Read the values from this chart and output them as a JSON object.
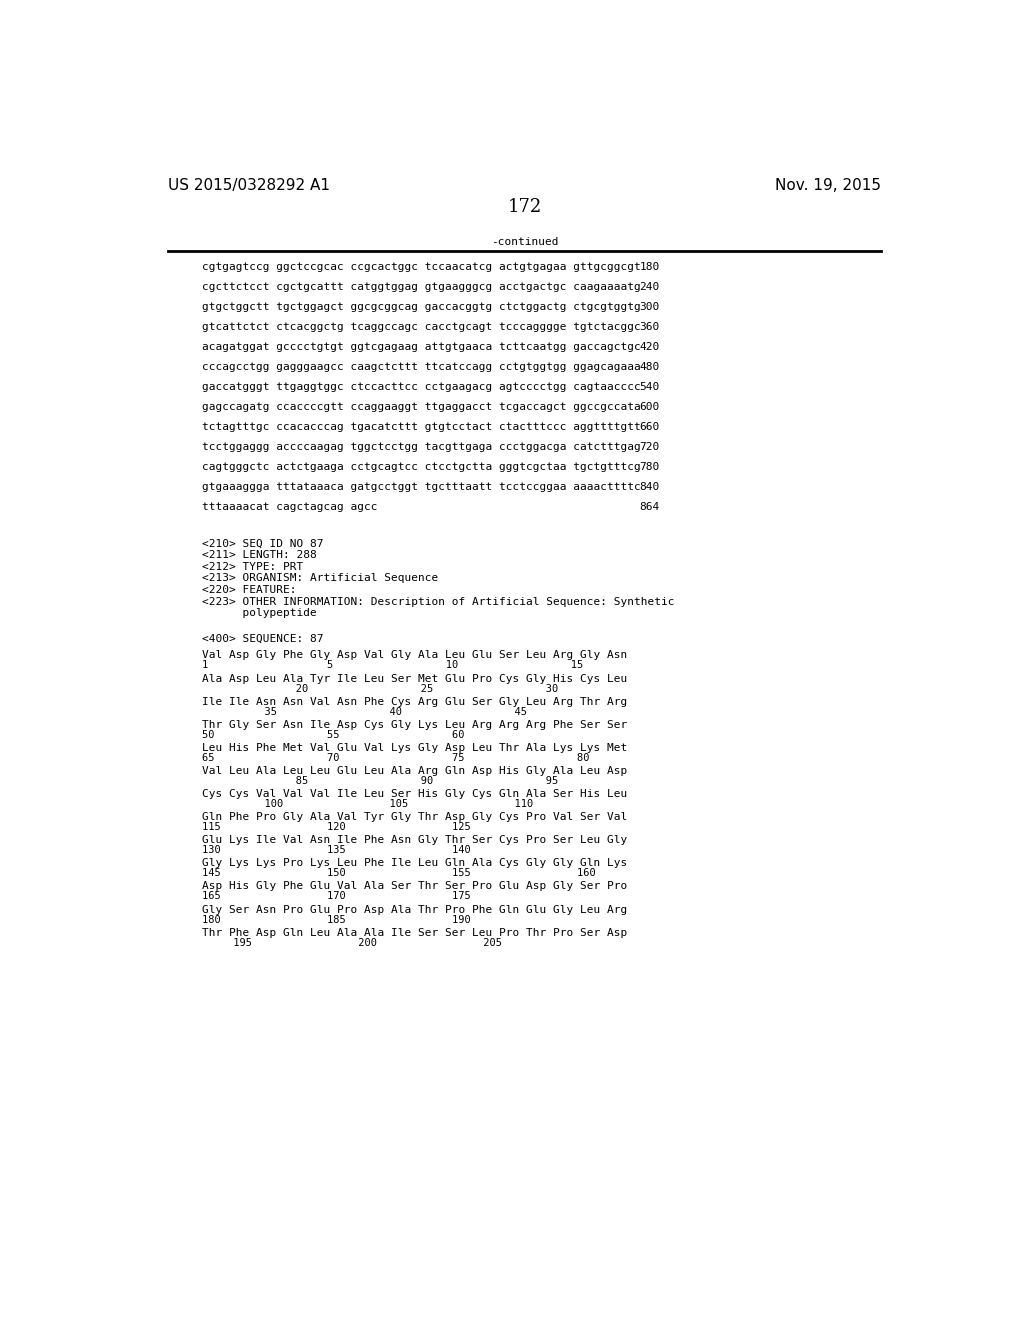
{
  "page_header_left": "US 2015/0328292 A1",
  "page_header_right": "Nov. 19, 2015",
  "page_number": "172",
  "continued_label": "-continued",
  "background_color": "#ffffff",
  "text_color": "#000000",
  "font_size_header": 11,
  "font_size_body": 8.0,
  "font_size_page_num": 13,
  "sequence_lines": [
    [
      "cgtgagtccg ggctccgcac ccgcactggc tccaacatcg actgtgagaa gttgcggcgt",
      "180"
    ],
    [
      "cgcttctcct cgctgcattt catggtggag gtgaagggcg acctgactgc caagaaaatg",
      "240"
    ],
    [
      "gtgctggctt tgctggagct ggcgcggcag gaccacggtg ctctggactg ctgcgtggtg",
      "300"
    ],
    [
      "gtcattctct ctcacggctg tcaggccagc cacctgcagt tcccagggge tgtctacggc",
      "360"
    ],
    [
      "acagatggat gcccctgtgt ggtcgagaag attgtgaaca tcttcaatgg gaccagctgc",
      "420"
    ],
    [
      "cccagcctgg gagggaagcc caagctcttt ttcatccagg cctgtggtgg ggagcagaaa",
      "480"
    ],
    [
      "gaccatgggt ttgaggtggc ctccacttcc cctgaagacg agtcccctgg cagtaacccc",
      "540"
    ],
    [
      "gagccagatg ccaccccgtt ccaggaaggt ttgaggacct tcgaccagct ggccgccata",
      "600"
    ],
    [
      "tctagtttgc ccacacccag tgacatcttt gtgtcctact ctactttccc aggttttgtt",
      "660"
    ],
    [
      "tcctggaggg accccaagag tggctcctgg tacgttgaga ccctggacga catctttgag",
      "720"
    ],
    [
      "cagtgggctc actctgaaga cctgcagtcc ctcctgctta gggtcgctaa tgctgtttcg",
      "780"
    ],
    [
      "gtgaaaggga tttataaaca gatgcctggt tgctttaatt tcctccggaa aaaacttttc",
      "840"
    ],
    [
      "tttaaaacat cagctagcag agcc",
      "864"
    ]
  ],
  "metadata_lines": [
    "<210> SEQ ID NO 87",
    "<211> LENGTH: 288",
    "<212> TYPE: PRT",
    "<213> ORGANISM: Artificial Sequence",
    "<220> FEATURE:",
    "<223> OTHER INFORMATION: Description of Artificial Sequence: Synthetic",
    "      polypeptide"
  ],
  "sequence_label": "<400> SEQUENCE: 87",
  "protein_lines": [
    {
      "seq": "Val Asp Gly Phe Gly Asp Val Gly Ala Leu Glu Ser Leu Arg Gly Asn",
      "nums": "1                   5                  10                  15"
    },
    {
      "seq": "Ala Asp Leu Ala Tyr Ile Leu Ser Met Glu Pro Cys Gly His Cys Leu",
      "nums": "               20                  25                  30"
    },
    {
      "seq": "Ile Ile Asn Asn Val Asn Phe Cys Arg Glu Ser Gly Leu Arg Thr Arg",
      "nums": "          35                  40                  45"
    },
    {
      "seq": "Thr Gly Ser Asn Ile Asp Cys Gly Lys Leu Arg Arg Arg Phe Ser Ser",
      "nums": "50                  55                  60"
    },
    {
      "seq": "Leu His Phe Met Val Glu Val Lys Gly Asp Leu Thr Ala Lys Lys Met",
      "nums": "65                  70                  75                  80"
    },
    {
      "seq": "Val Leu Ala Leu Leu Glu Leu Ala Arg Gln Asp His Gly Ala Leu Asp",
      "nums": "               85                  90                  95"
    },
    {
      "seq": "Cys Cys Val Val Val Ile Leu Ser His Gly Cys Gln Ala Ser His Leu",
      "nums": "          100                 105                 110"
    },
    {
      "seq": "Gln Phe Pro Gly Ala Val Tyr Gly Thr Asp Gly Cys Pro Val Ser Val",
      "nums": "115                 120                 125"
    },
    {
      "seq": "Glu Lys Ile Val Asn Ile Phe Asn Gly Thr Ser Cys Pro Ser Leu Gly",
      "nums": "130                 135                 140"
    },
    {
      "seq": "Gly Lys Lys Pro Lys Leu Phe Ile Leu Gln Ala Cys Gly Gly Gln Lys",
      "nums": "145                 150                 155                 160"
    },
    {
      "seq": "Asp His Gly Phe Glu Val Ala Ser Thr Ser Pro Glu Asp Gly Ser Pro",
      "nums": "165                 170                 175"
    },
    {
      "seq": "Gly Ser Asn Pro Glu Pro Asp Ala Thr Pro Phe Gln Glu Gly Leu Arg",
      "nums": "180                 185                 190"
    },
    {
      "seq": "Thr Phe Asp Gln Leu Ala Ala Ile Ser Ser Leu Pro Thr Pro Ser Asp",
      "nums": "     195                 200                 205"
    }
  ]
}
